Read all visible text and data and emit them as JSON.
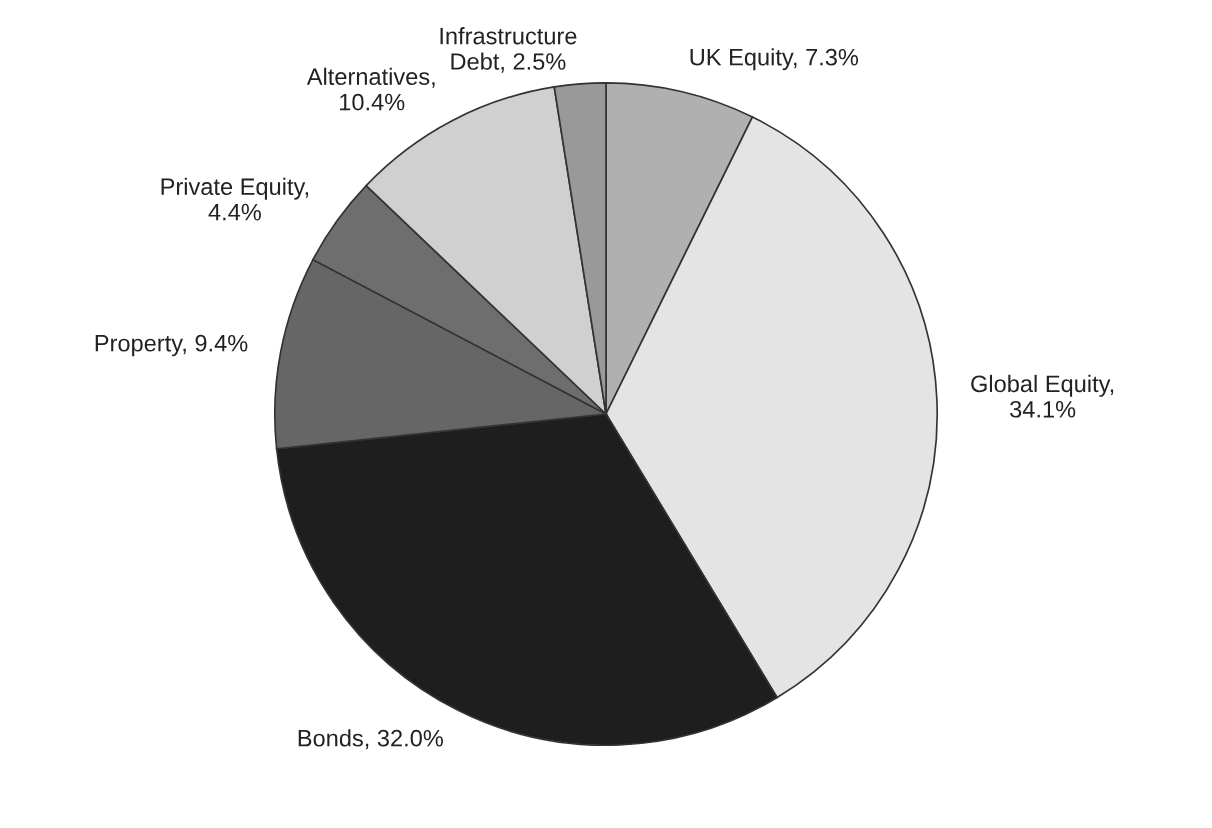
{
  "chart_data": {
    "type": "pie",
    "categories": [
      "UK Equity, 7.3%",
      "Global Equity,\n34.1%",
      "Bonds, 32.0%",
      "Property, 9.4%",
      "Private Equity,\n4.4%",
      "Alternatives,\n10.4%",
      "Infrastructure\nDebt, 2.5%"
    ],
    "values": [
      7.3,
      34.1,
      32.0,
      9.4,
      4.4,
      10.4,
      2.5
    ],
    "colors": [
      "#b0b0b0",
      "#e4e4e4",
      "#1e1e1e",
      "#666666",
      "#6e6e6e",
      "#d0d0d0",
      "#999999"
    ]
  }
}
